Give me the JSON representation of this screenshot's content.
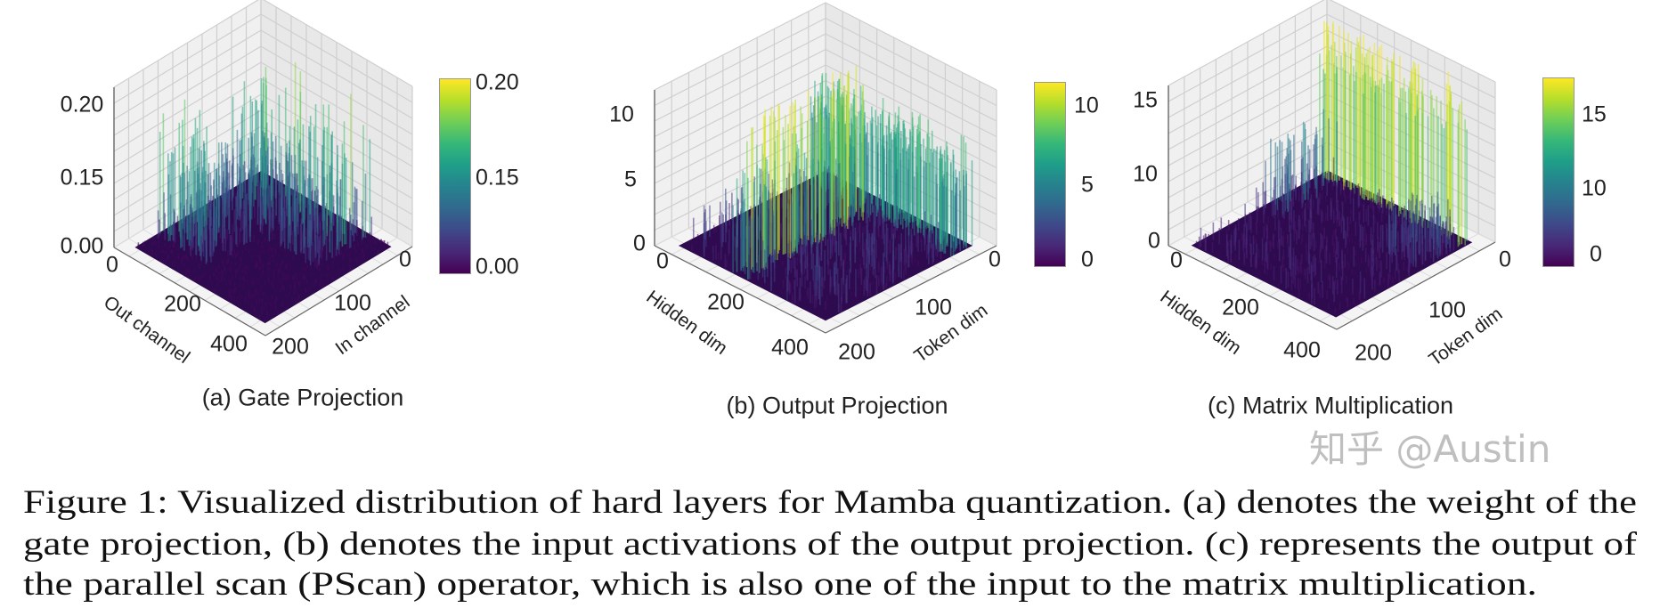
{
  "chart_data": [
    {
      "type": "bar3d",
      "title": "(a) Gate Projection",
      "xlabel": "Out channel",
      "ylabel": "In channel",
      "x_ticks": [
        "0",
        "200",
        "400"
      ],
      "y_ticks": [
        "0",
        "100",
        "200"
      ],
      "z_ticks": [
        "0.00",
        "0.15",
        "0.20"
      ],
      "colorbar_ticks": [
        "0.20",
        "0.15",
        "0.00"
      ],
      "colormap": "viridis",
      "zlim": [
        0,
        0.2
      ]
    },
    {
      "type": "bar3d",
      "title": "(b) Output Projection",
      "xlabel": "Hidden dim",
      "ylabel": "Token dim",
      "x_ticks": [
        "0",
        "200",
        "400"
      ],
      "y_ticks": [
        "0",
        "100",
        "200"
      ],
      "z_ticks": [
        "0",
        "5",
        "10"
      ],
      "colorbar_ticks": [
        "10",
        "5",
        "0"
      ],
      "colormap": "viridis",
      "zlim": [
        0,
        11
      ]
    },
    {
      "type": "bar3d",
      "title": "(c) Matrix Multiplication",
      "xlabel": "Hidden dim",
      "ylabel": "Token dim",
      "x_ticks": [
        "0",
        "200",
        "400"
      ],
      "y_ticks": [
        "0",
        "100",
        "200"
      ],
      "z_ticks": [
        "0",
        "10",
        "15"
      ],
      "colorbar_ticks": [
        "15",
        "10",
        "0"
      ],
      "colormap": "viridis",
      "zlim": [
        0,
        17
      ]
    }
  ],
  "caption": {
    "lines": [
      "Figure 1: Visualized distribution of hard layers for Mamba quantization. (a) denotes the weight of the",
      "gate projection, (b) denotes the input activations of the output projection. (c) represents the output of",
      "the parallel scan (PScan) operator, which is also one of the input to the matrix multiplication."
    ]
  },
  "watermark": "知乎 @Austin"
}
